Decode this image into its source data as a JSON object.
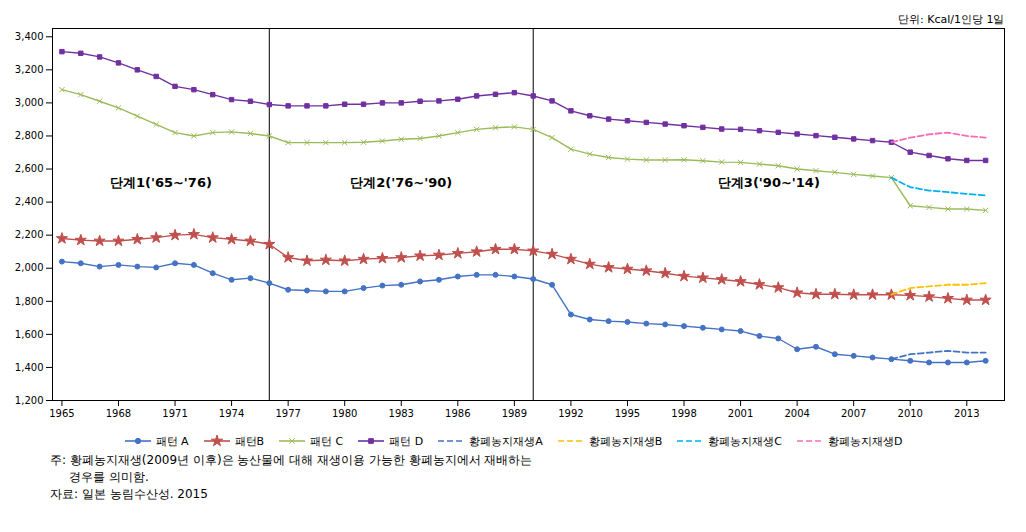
{
  "chart_data": {
    "type": "line",
    "unit": "단위: Kcal/1인당 1일",
    "phase_labels": [
      "단계1('65~'76)",
      "단계2('76~'90)",
      "단계3('90~'14)"
    ],
    "vlines": [
      1976,
      1990
    ],
    "xlim": [
      1964.5,
      2015
    ],
    "ylim": [
      1200,
      3450
    ],
    "xticks": [
      1965,
      1968,
      1971,
      1974,
      1977,
      1980,
      1983,
      1986,
      1989,
      1992,
      1995,
      1998,
      2001,
      2004,
      2007,
      2010,
      2013
    ],
    "yticks": [
      {
        "value": 1200,
        "label": "1,200"
      },
      {
        "value": 1400,
        "label": "1,400"
      },
      {
        "value": 1600,
        "label": "1,600"
      },
      {
        "value": 1800,
        "label": "1,800"
      },
      {
        "value": 2000,
        "label": "2,000"
      },
      {
        "value": 2200,
        "label": "2,200"
      },
      {
        "value": 2400,
        "label": "2,400"
      },
      {
        "value": 2600,
        "label": "2,600"
      },
      {
        "value": 2800,
        "label": "2,800"
      },
      {
        "value": 3000,
        "label": "3,000"
      },
      {
        "value": 3200,
        "label": "3,200"
      },
      {
        "value": 3400,
        "label": "3,400"
      }
    ],
    "grid": false,
    "legend": "bottom",
    "series": [
      {
        "name": "패턴 A",
        "color": "#4472C4",
        "marker": "circle",
        "line_style": "solid",
        "x": [
          1965,
          1966,
          1967,
          1968,
          1969,
          1970,
          1971,
          1972,
          1973,
          1974,
          1975,
          1976,
          1977,
          1978,
          1979,
          1980,
          1981,
          1982,
          1983,
          1984,
          1985,
          1986,
          1987,
          1988,
          1989,
          1990,
          1991,
          1992,
          1993,
          1994,
          1995,
          1996,
          1997,
          1998,
          1999,
          2000,
          2001,
          2002,
          2003,
          2004,
          2005,
          2006,
          2007,
          2008,
          2009,
          2010,
          2011,
          2012,
          2013,
          2014
        ],
        "values": [
          2040,
          2030,
          2010,
          2020,
          2010,
          2005,
          2030,
          2020,
          1970,
          1930,
          1940,
          1910,
          1870,
          1865,
          1860,
          1860,
          1880,
          1895,
          1900,
          1920,
          1930,
          1950,
          1960,
          1960,
          1950,
          1935,
          1900,
          1720,
          1690,
          1680,
          1675,
          1665,
          1660,
          1650,
          1640,
          1630,
          1620,
          1590,
          1575,
          1510,
          1525,
          1480,
          1470,
          1460,
          1450,
          1440,
          1430,
          1430,
          1430,
          1440
        ]
      },
      {
        "name": "패턴B",
        "color": "#C0504D",
        "marker": "star",
        "line_style": "solid",
        "x": [
          1965,
          1966,
          1967,
          1968,
          1969,
          1970,
          1971,
          1972,
          1973,
          1974,
          1975,
          1976,
          1977,
          1978,
          1979,
          1980,
          1981,
          1982,
          1983,
          1984,
          1985,
          1986,
          1987,
          1988,
          1989,
          1990,
          1991,
          1992,
          1993,
          1994,
          1995,
          1996,
          1997,
          1998,
          1999,
          2000,
          2001,
          2002,
          2003,
          2004,
          2005,
          2006,
          2007,
          2008,
          2009,
          2010,
          2011,
          2012,
          2013,
          2014
        ],
        "values": [
          2180,
          2170,
          2165,
          2165,
          2175,
          2185,
          2200,
          2205,
          2185,
          2175,
          2165,
          2145,
          2065,
          2045,
          2050,
          2045,
          2055,
          2060,
          2065,
          2075,
          2080,
          2090,
          2100,
          2115,
          2115,
          2105,
          2085,
          2055,
          2025,
          2005,
          1995,
          1985,
          1970,
          1952,
          1942,
          1932,
          1920,
          1902,
          1883,
          1852,
          1843,
          1843,
          1840,
          1840,
          1840,
          1836,
          1828,
          1818,
          1808,
          1808
        ]
      },
      {
        "name": "패턴 C",
        "color": "#9BBB59",
        "marker": "times",
        "line_style": "solid",
        "x": [
          1965,
          1966,
          1967,
          1968,
          1969,
          1970,
          1971,
          1972,
          1973,
          1974,
          1975,
          1976,
          1977,
          1978,
          1979,
          1980,
          1981,
          1982,
          1983,
          1984,
          1985,
          1986,
          1987,
          1988,
          1989,
          1990,
          1991,
          1992,
          1993,
          1994,
          1995,
          1996,
          1997,
          1998,
          1999,
          2000,
          2001,
          2002,
          2003,
          2004,
          2005,
          2006,
          2007,
          2008,
          2009,
          2010,
          2011,
          2012,
          2013,
          2014
        ],
        "values": [
          3080,
          3050,
          3010,
          2970,
          2920,
          2870,
          2820,
          2800,
          2820,
          2825,
          2815,
          2800,
          2760,
          2760,
          2760,
          2760,
          2762,
          2770,
          2780,
          2785,
          2800,
          2820,
          2840,
          2850,
          2855,
          2840,
          2790,
          2720,
          2690,
          2670,
          2660,
          2655,
          2655,
          2656,
          2650,
          2642,
          2640,
          2630,
          2620,
          2600,
          2590,
          2580,
          2568,
          2558,
          2548,
          2378,
          2368,
          2358,
          2358,
          2350
        ]
      },
      {
        "name": "패턴 D",
        "color": "#7030A0",
        "marker": "square",
        "line_style": "solid",
        "x": [
          1965,
          1966,
          1967,
          1968,
          1969,
          1970,
          1971,
          1972,
          1973,
          1974,
          1975,
          1976,
          1977,
          1978,
          1979,
          1980,
          1981,
          1982,
          1983,
          1984,
          1985,
          1986,
          1987,
          1988,
          1989,
          1990,
          1991,
          1992,
          1993,
          1994,
          1995,
          1996,
          1997,
          1998,
          1999,
          2000,
          2001,
          2002,
          2003,
          2004,
          2005,
          2006,
          2007,
          2008,
          2009,
          2010,
          2011,
          2012,
          2013,
          2014
        ],
        "values": [
          3310,
          3300,
          3278,
          3242,
          3200,
          3160,
          3100,
          3080,
          3050,
          3020,
          3010,
          2990,
          2982,
          2982,
          2982,
          2992,
          2992,
          3000,
          3000,
          3010,
          3012,
          3022,
          3042,
          3052,
          3062,
          3042,
          3012,
          2952,
          2922,
          2902,
          2892,
          2882,
          2872,
          2862,
          2852,
          2842,
          2840,
          2832,
          2822,
          2812,
          2802,
          2792,
          2782,
          2772,
          2762,
          2702,
          2682,
          2662,
          2652,
          2652
        ]
      },
      {
        "name": "황폐농지재생A",
        "color": "#4472C4",
        "line_style": "dashed",
        "x": [
          2009,
          2010,
          2011,
          2012,
          2013,
          2014
        ],
        "values": [
          1450,
          1480,
          1490,
          1500,
          1490,
          1490
        ]
      },
      {
        "name": "황폐농지재생B",
        "color": "#FFC000",
        "line_style": "dashed",
        "x": [
          2009,
          2010,
          2011,
          2012,
          2013,
          2014
        ],
        "values": [
          1840,
          1880,
          1890,
          1900,
          1900,
          1910
        ]
      },
      {
        "name": "황폐농지재생C",
        "color": "#00B0F0",
        "line_style": "dashed",
        "x": [
          2009,
          2010,
          2011,
          2012,
          2013,
          2014
        ],
        "values": [
          2548,
          2490,
          2470,
          2460,
          2450,
          2440
        ]
      },
      {
        "name": "황폐농지재생D",
        "color": "#FF69B4",
        "line_style": "dashed",
        "x": [
          2009,
          2010,
          2011,
          2012,
          2013,
          2014
        ],
        "values": [
          2762,
          2790,
          2810,
          2820,
          2800,
          2790
        ]
      }
    ],
    "notes": [
      "주: 황폐농지재생(2009년 이후)은 농산물에 대해 재생이용 가능한 황폐농지에서 재배하는",
      "     경우를 의미함.",
      "자료: 일본 농림수산성. 2015"
    ]
  }
}
